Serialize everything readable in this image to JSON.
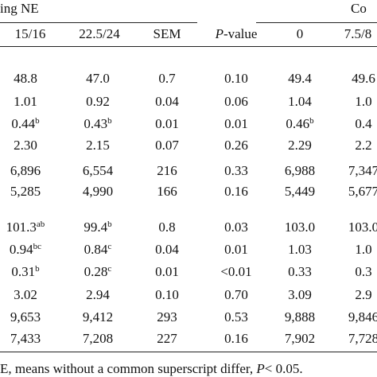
{
  "header": {
    "group_left": "ing NE",
    "group_right": "Co",
    "columns": [
      "15/16",
      "22.5/24",
      "SEM",
      "P-value",
      "0",
      "7.5/8"
    ]
  },
  "table": {
    "rows": [
      [
        {
          "text": "48.8"
        },
        {
          "text": "47.0"
        },
        {
          "text": "0.7"
        },
        {
          "text": "0.10"
        },
        {
          "text": "49.4"
        },
        {
          "text": "49.6"
        }
      ],
      [
        {
          "text": "1.01"
        },
        {
          "text": "0.92"
        },
        {
          "text": "0.04"
        },
        {
          "text": "0.06"
        },
        {
          "text": "1.04"
        },
        {
          "text": "1.0"
        }
      ],
      [
        {
          "text": "0.44",
          "sup": "b"
        },
        {
          "text": "0.43",
          "sup": "b"
        },
        {
          "text": "0.01"
        },
        {
          "text": "0.01"
        },
        {
          "text": "0.46",
          "sup": "b"
        },
        {
          "text": "0.4"
        }
      ],
      [
        {
          "text": "2.30"
        },
        {
          "text": "2.15"
        },
        {
          "text": "0.07"
        },
        {
          "text": "0.26"
        },
        {
          "text": "2.29"
        },
        {
          "text": "2.2"
        }
      ],
      [
        {
          "text": "6,896"
        },
        {
          "text": "6,554"
        },
        {
          "text": "216"
        },
        {
          "text": "0.33"
        },
        {
          "text": "6,988"
        },
        {
          "text": "7,347"
        }
      ],
      [
        {
          "text": "5,285"
        },
        {
          "text": "4,990"
        },
        {
          "text": "166"
        },
        {
          "text": "0.16"
        },
        {
          "text": "5,449"
        },
        {
          "text": "5,677"
        }
      ],
      [
        {
          "text": "101.3",
          "sup": "ab"
        },
        {
          "text": "99.4",
          "sup": "b"
        },
        {
          "text": "0.8"
        },
        {
          "text": "0.03"
        },
        {
          "text": "103.0"
        },
        {
          "text": "103.0"
        }
      ],
      [
        {
          "text": "0.94",
          "sup": "bc"
        },
        {
          "text": "0.84",
          "sup": "c"
        },
        {
          "text": "0.04"
        },
        {
          "text": "0.01"
        },
        {
          "text": "1.03"
        },
        {
          "text": "1.0"
        }
      ],
      [
        {
          "text": "0.31",
          "sup": "b"
        },
        {
          "text": "0.28",
          "sup": "c"
        },
        {
          "text": "0.01"
        },
        {
          "text": "<0.01"
        },
        {
          "text": "0.33"
        },
        {
          "text": "0.3"
        }
      ],
      [
        {
          "text": "3.02"
        },
        {
          "text": "2.94"
        },
        {
          "text": "0.10"
        },
        {
          "text": "0.70"
        },
        {
          "text": "3.09"
        },
        {
          "text": "2.9"
        }
      ],
      [
        {
          "text": "9,653"
        },
        {
          "text": "9,412"
        },
        {
          "text": "293"
        },
        {
          "text": "0.53"
        },
        {
          "text": "9,888"
        },
        {
          "text": "9,846"
        }
      ],
      [
        {
          "text": "7,433"
        },
        {
          "text": "7,208"
        },
        {
          "text": "227"
        },
        {
          "text": "0.16"
        },
        {
          "text": "7,902"
        },
        {
          "text": "7,728"
        }
      ]
    ]
  },
  "footnote": {
    "before": "E, means without a common superscript differ, ",
    "italic": "P",
    "after": "< 0.05."
  }
}
